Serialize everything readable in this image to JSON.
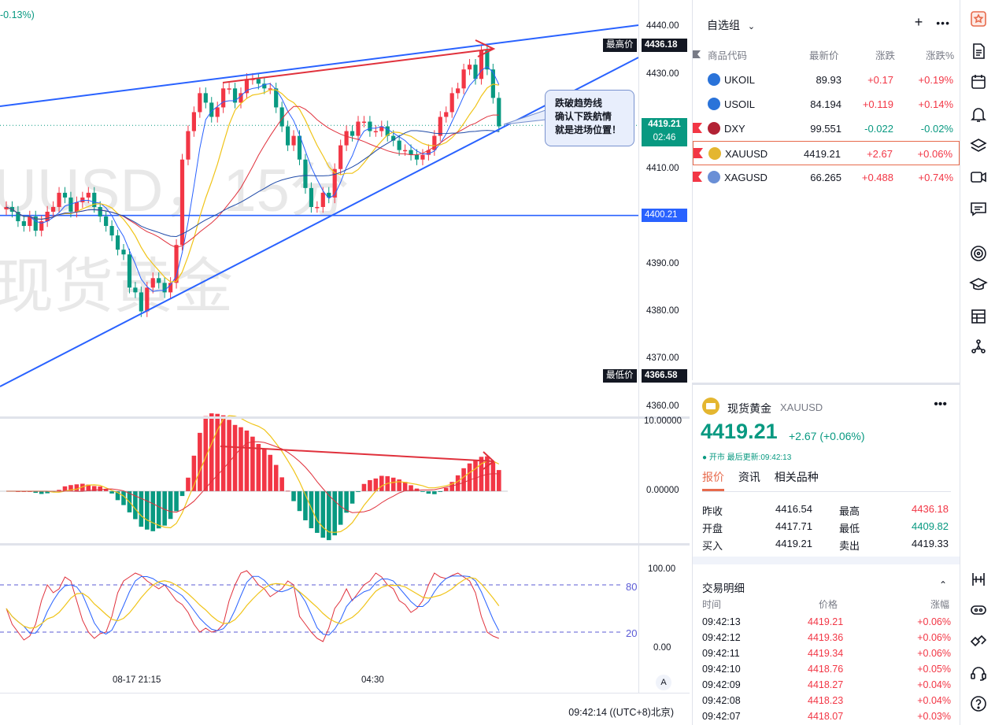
{
  "chart": {
    "header_change": "-0.13%)",
    "watermark_line1": "UUSD，15分",
    "watermark_line2": "现货黄金",
    "price_labels": [
      "4440.00",
      "4430.00",
      "4410.00",
      "4390.00",
      "4380.00",
      "4370.00",
      "4360.00"
    ],
    "tags": {
      "high_label": "最高价",
      "high_value": "4436.18",
      "low_label": "最低价",
      "low_value": "4366.58",
      "current_value": "4419.21",
      "countdown": "02:46",
      "hline_value": "4400.21"
    },
    "callout_lines": [
      "跌破趋势线",
      "确认下跌航情",
      "就是进场位置！"
    ],
    "macd_labels": [
      "10.00000",
      "0.00000"
    ],
    "stoch_labels": [
      "100.00",
      "0.00"
    ],
    "stoch_levels": [
      "80",
      "20"
    ],
    "time_labels": [
      "08-17 21:15",
      "04:30"
    ],
    "auto_button": "A",
    "clock": "09:42:14 ((UTC+8)北京)",
    "colors": {
      "up": "#f23645",
      "down": "#089981",
      "trend": "#2962ff",
      "arrow": "#e0313c"
    }
  },
  "watchlist": {
    "title": "自选组",
    "add_icon": "plus-icon",
    "more_icon": "more-icon",
    "columns": [
      "商品代码",
      "最新价",
      "涨跌",
      "涨跌%"
    ],
    "rows": [
      {
        "symbol": "UKOIL",
        "price": "89.93",
        "change": "+0.17",
        "pct": "+0.19%",
        "dir": "up",
        "icon": "oil-icon",
        "flag": false
      },
      {
        "symbol": "USOIL",
        "price": "84.194",
        "change": "+0.119",
        "pct": "+0.14%",
        "dir": "up",
        "icon": "oil-icon",
        "flag": false
      },
      {
        "symbol": "DXY",
        "price": "99.551",
        "change": "-0.022",
        "pct": "-0.02%",
        "dir": "down",
        "icon": "us-flag-icon",
        "flag": true
      },
      {
        "symbol": "XAUUSD",
        "price": "4419.21",
        "change": "+2.67",
        "pct": "+0.06%",
        "dir": "up",
        "icon": "gold-icon",
        "flag": true,
        "selected": true
      },
      {
        "symbol": "XAGUSD",
        "price": "66.265",
        "change": "+0.488",
        "pct": "+0.74%",
        "dir": "up",
        "icon": "silver-icon",
        "flag": true
      }
    ]
  },
  "details": {
    "name": "现货黄金",
    "code": "XAUUSD",
    "price": "4419.21",
    "change": "+2.67 (+0.06%)",
    "status": "● 开市  最后更新:09:42:13",
    "tabs": [
      "报价",
      "资讯",
      "相关品种"
    ],
    "stats": [
      {
        "label": "昨收",
        "value": "4416.54",
        "label2": "最高",
        "value2": "4436.18"
      },
      {
        "label": "开盘",
        "value": "4417.71",
        "label2": "最低",
        "value2": "4409.82"
      },
      {
        "label": "买入",
        "value": "4419.21",
        "label2": "卖出",
        "value2": "4419.33"
      }
    ],
    "trades_title": "交易明细",
    "trade_columns": [
      "时间",
      "价格",
      "涨幅"
    ],
    "trades": [
      {
        "time": "09:42:13",
        "price": "4419.21",
        "pct": "+0.06%"
      },
      {
        "time": "09:42:12",
        "price": "4419.36",
        "pct": "+0.06%"
      },
      {
        "time": "09:42:11",
        "price": "4419.34",
        "pct": "+0.06%"
      },
      {
        "time": "09:42:10",
        "price": "4418.76",
        "pct": "+0.05%"
      },
      {
        "time": "09:42:09",
        "price": "4418.27",
        "pct": "+0.04%"
      },
      {
        "time": "09:42:08",
        "price": "4418.23",
        "pct": "+0.04%"
      },
      {
        "time": "09:42:07",
        "price": "4418.07",
        "pct": "+0.03%"
      }
    ]
  },
  "toolbar": {
    "icons": [
      "watchlist-icon",
      "news-icon",
      "calendar-icon",
      "alert-icon",
      "layers-icon",
      "video-icon",
      "chat-icon",
      "target-icon",
      "education-icon",
      "table-icon",
      "network-icon",
      "data-window-icon",
      "ideas-icon",
      "handshake-icon",
      "support-icon",
      "help-icon"
    ]
  }
}
